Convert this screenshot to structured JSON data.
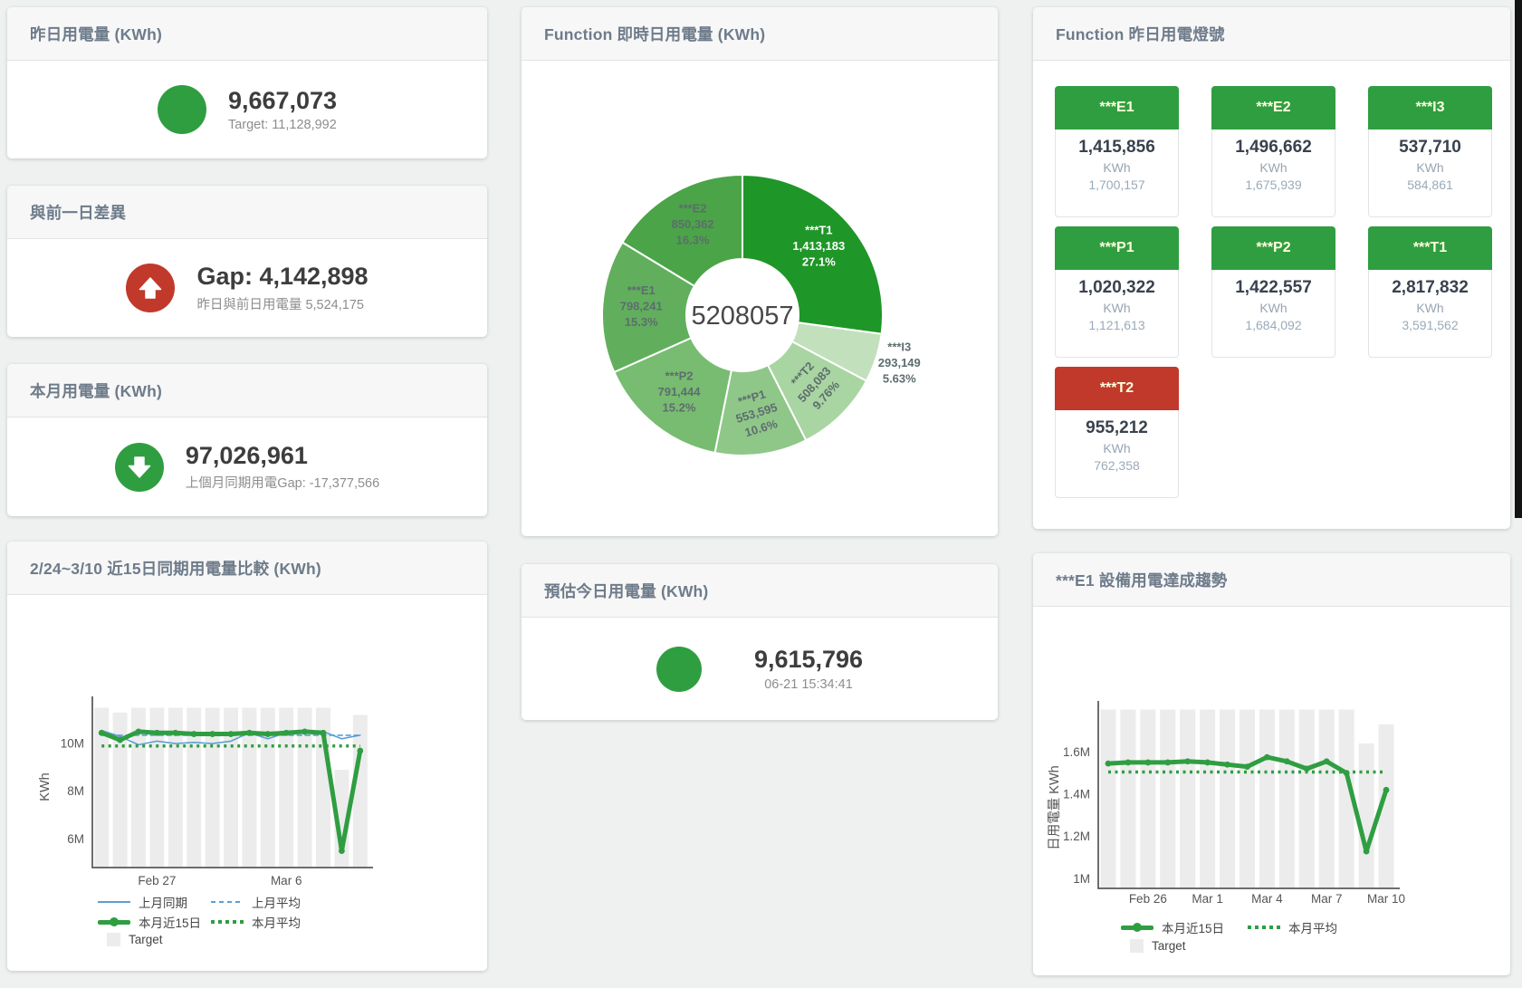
{
  "accents": {
    "green": "#2f9e41",
    "red": "#c1392b",
    "bar_gray": "#ececec",
    "blue": "#5b9fd6"
  },
  "status_colors": {
    "green": "#2f9e41",
    "red": "#c1392b"
  },
  "cards": {
    "yesterday": {
      "title": "昨日用電量 (KWh)",
      "value": "9,667,073",
      "subtitle": "Target: 11,128,992"
    },
    "gap_prev_day": {
      "title": "與前一日差異",
      "value": "Gap: 4,142,898",
      "subtitle": "昨日與前日用電量 5,524,175"
    },
    "month": {
      "title": "本月用電量 (KWh)",
      "value": "97,026,961",
      "subtitle": "上個月同期用電Gap: -17,377,566"
    },
    "realtime_donut": {
      "title": "Function 即時日用電量 (KWh)"
    },
    "lights": {
      "title": "Function 昨日用電燈號",
      "unit": "KWh",
      "tiles": [
        {
          "name": "***E1",
          "value": "1,415,856",
          "target": "1,700,157",
          "status": "green"
        },
        {
          "name": "***E2",
          "value": "1,496,662",
          "target": "1,675,939",
          "status": "green"
        },
        {
          "name": "***I3",
          "value": "537,710",
          "target": "584,861",
          "status": "green"
        },
        {
          "name": "***P1",
          "value": "1,020,322",
          "target": "1,121,613",
          "status": "green"
        },
        {
          "name": "***P2",
          "value": "1,422,557",
          "target": "1,684,092",
          "status": "green"
        },
        {
          "name": "***T1",
          "value": "2,817,832",
          "target": "3,591,562",
          "status": "green"
        },
        {
          "name": "***T2",
          "value": "955,212",
          "target": "762,358",
          "status": "red"
        }
      ]
    },
    "compare15": {
      "title": "2/24~3/10 近15日同期用電量比較 (KWh)"
    },
    "estimate_today": {
      "title": "預估今日用電量 (KWh)",
      "value": "9,615,796",
      "subtitle": "06-21 15:34:41"
    },
    "e1_trend": {
      "title": "***E1 設備用電達成趨勢"
    }
  },
  "chart_data": [
    {
      "type": "pie",
      "title": "Function 即時日用電量 (KWh)",
      "center_total": "5208057",
      "slices": [
        {
          "name": "***T1",
          "value": 1413183,
          "value_label": "1,413,183",
          "pct": "27.1%",
          "color": "#1f9628",
          "label_color": "#ffffff"
        },
        {
          "name": "***I3",
          "value": 293149,
          "value_label": "293,149",
          "pct": "5.63%",
          "color": "#c2e0bc",
          "label_outside": true
        },
        {
          "name": "***T2",
          "value": 508083,
          "value_label": "508,083",
          "pct": "9.76%",
          "color": "#a8d5a1",
          "label_rotation": -48
        },
        {
          "name": "***P1",
          "value": 553595,
          "value_label": "553,595",
          "pct": "10.6%",
          "color": "#8fc789",
          "label_rotation": -17
        },
        {
          "name": "***P2",
          "value": 791444,
          "value_label": "791,444",
          "pct": "15.2%",
          "color": "#77bc71"
        },
        {
          "name": "***E1",
          "value": 798241,
          "value_label": "798,241",
          "pct": "15.3%",
          "color": "#61af5d"
        },
        {
          "name": "***E2",
          "value": 850362,
          "value_label": "850,362",
          "pct": "16.3%",
          "color": "#4ba448"
        }
      ]
    },
    {
      "type": "line",
      "title": "2/24~3/10 近15日同期用電量比較 (KWh)",
      "x": [
        "2/24",
        "2/25",
        "2/26",
        "2/27",
        "2/28",
        "3/1",
        "3/2",
        "3/3",
        "3/4",
        "3/5",
        "3/6",
        "3/7",
        "3/8",
        "3/9",
        "3/10"
      ],
      "x_ticks": [
        {
          "index": 3,
          "label": "Feb 27"
        },
        {
          "index": 10,
          "label": "Mar 6"
        }
      ],
      "ylabel": "KWh",
      "ylim": [
        4.8,
        11.75
      ],
      "y_ticks": [
        {
          "v": 6,
          "label": "6M"
        },
        {
          "v": 8,
          "label": "8M"
        },
        {
          "v": 10,
          "label": "10M"
        }
      ],
      "unit_scale": "millions KWh",
      "series": [
        {
          "name": "Target",
          "type": "bar",
          "color": "#ececec",
          "values": [
            11.5,
            11.3,
            11.5,
            11.5,
            11.5,
            11.5,
            11.5,
            11.5,
            11.5,
            11.5,
            11.5,
            11.5,
            11.5,
            8.9,
            11.2
          ]
        },
        {
          "name": "上月同期",
          "type": "line",
          "style": "solid",
          "width": 1.6,
          "color": "#5b9fd6",
          "values": [
            10.55,
            10.3,
            9.95,
            10.1,
            10.0,
            10.05,
            10.0,
            10.1,
            10.45,
            10.2,
            10.45,
            10.5,
            10.5,
            10.2,
            10.35
          ]
        },
        {
          "name": "上月平均",
          "type": "line",
          "style": "dashed",
          "width": 1.6,
          "color": "#5b9fd6",
          "values": [
            10.35,
            10.35,
            10.35,
            10.35,
            10.35,
            10.35,
            10.35,
            10.35,
            10.35,
            10.35,
            10.35,
            10.35,
            10.35,
            10.35,
            10.35
          ]
        },
        {
          "name": "本月近15日",
          "type": "line",
          "style": "solid",
          "width": 5,
          "color": "#2f9e41",
          "points": true,
          "values": [
            10.45,
            10.15,
            10.5,
            10.45,
            10.45,
            10.4,
            10.4,
            10.4,
            10.45,
            10.4,
            10.45,
            10.5,
            10.45,
            5.5,
            9.7
          ]
        },
        {
          "name": "本月平均",
          "type": "line",
          "style": "dotted",
          "width": 3.5,
          "color": "#2f9e41",
          "values": [
            9.9,
            9.9,
            9.9,
            9.9,
            9.9,
            9.9,
            9.9,
            9.9,
            9.9,
            9.9,
            9.9,
            9.9,
            9.9,
            9.9,
            9.9
          ]
        }
      ],
      "legend_position": "bottom-left"
    },
    {
      "type": "line",
      "title": "***E1 設備用電達成趨勢",
      "x": [
        "2/24",
        "2/25",
        "2/26",
        "2/27",
        "2/28",
        "3/1",
        "3/2",
        "3/3",
        "3/4",
        "3/5",
        "3/6",
        "3/7",
        "3/8",
        "3/9",
        "3/10"
      ],
      "x_ticks": [
        {
          "index": 2,
          "label": "Feb 26"
        },
        {
          "index": 5,
          "label": "Mar 1"
        },
        {
          "index": 8,
          "label": "Mar 4"
        },
        {
          "index": 11,
          "label": "Mar 7"
        },
        {
          "index": 14,
          "label": "Mar 10"
        }
      ],
      "ylabel": "日用電量 KWh",
      "ylim": [
        0.955,
        1.815
      ],
      "y_ticks": [
        {
          "v": 1.0,
          "label": "1M"
        },
        {
          "v": 1.2,
          "label": "1.2M"
        },
        {
          "v": 1.4,
          "label": "1.4M"
        },
        {
          "v": 1.6,
          "label": "1.6M"
        }
      ],
      "unit_scale": "millions KWh",
      "series": [
        {
          "name": "Target",
          "type": "bar",
          "color": "#ececec",
          "values": [
            1.8,
            1.8,
            1.8,
            1.8,
            1.8,
            1.8,
            1.8,
            1.8,
            1.8,
            1.8,
            1.8,
            1.8,
            1.8,
            1.64,
            1.73
          ]
        },
        {
          "name": "本月近15日",
          "type": "line",
          "style": "solid",
          "width": 5,
          "color": "#2f9e41",
          "points": true,
          "values": [
            1.545,
            1.55,
            1.55,
            1.55,
            1.555,
            1.55,
            1.54,
            1.53,
            1.575,
            1.555,
            1.52,
            1.555,
            1.5,
            1.13,
            1.42
          ]
        },
        {
          "name": "本月平均",
          "type": "line",
          "style": "dotted",
          "width": 3.5,
          "color": "#2f9e41",
          "values": [
            1.505,
            1.505,
            1.505,
            1.505,
            1.505,
            1.505,
            1.505,
            1.505,
            1.505,
            1.505,
            1.505,
            1.505,
            1.505,
            1.505,
            1.505
          ]
        }
      ],
      "legend_position": "bottom-left"
    }
  ]
}
